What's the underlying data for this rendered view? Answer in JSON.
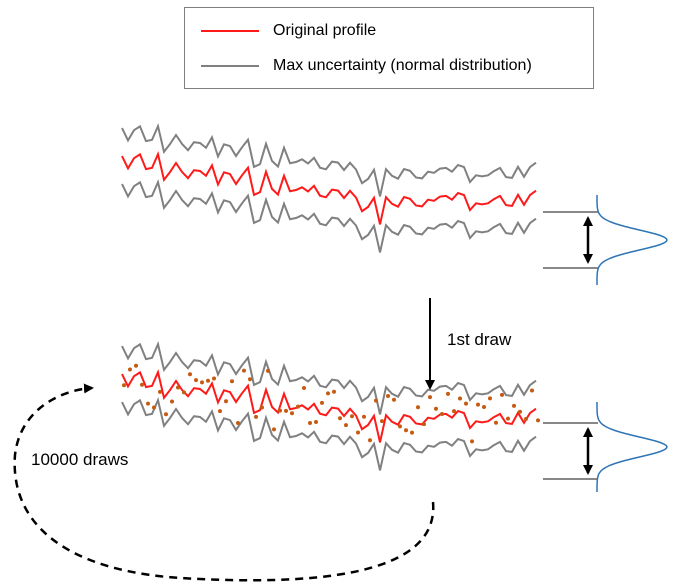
{
  "legend": {
    "items": [
      {
        "label": "Original profile",
        "color": "#ff1a1a"
      },
      {
        "label": "Max uncertainty (normal distribution)",
        "color": "#808080"
      }
    ]
  },
  "labels": {
    "draw_step": "1st draw",
    "loop": "10000 draws"
  },
  "colors": {
    "profile": "#ff1a1a",
    "bound": "#808080",
    "sample_dot": "#c55a11",
    "distribution": "#2e75b6",
    "arrow": "#000000"
  }
}
